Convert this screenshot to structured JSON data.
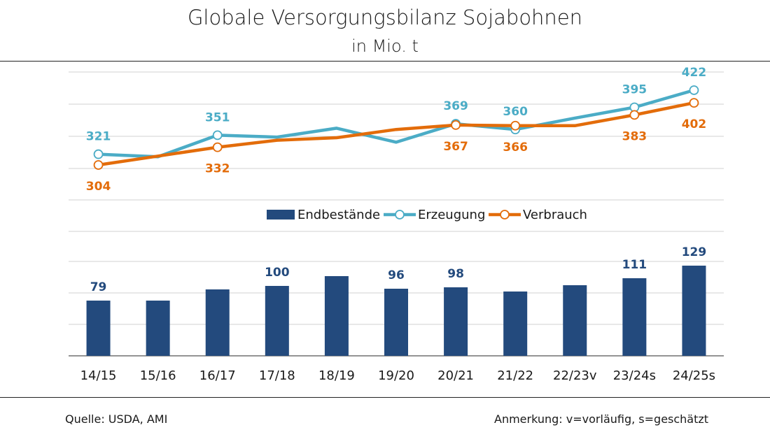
{
  "header": {
    "title": "Globale Versorgungsbilanz Sojabohnen",
    "subtitle": "in Mio. t"
  },
  "footer": {
    "source": "Quelle: USDA, AMI",
    "note": "Anmerkung: v=vorläufig, s=geschätzt"
  },
  "colors": {
    "endbestaende": "#234a7d",
    "erzeugung": "#4bacc6",
    "verbrauch": "#e36c0a",
    "grid": "#d0d0d0"
  },
  "chart_data": {
    "type": "bar+line",
    "categories": [
      "14/15",
      "15/16",
      "16/17",
      "17/18",
      "18/19",
      "19/20",
      "20/21",
      "21/22",
      "22/23v",
      "23/24s",
      "24/25s"
    ],
    "legend": [
      "Endbestände",
      "Erzeugung",
      "Verbrauch"
    ],
    "legend_position": "middle",
    "grid": true,
    "series": [
      {
        "name": "Erzeugung",
        "type": "line",
        "values": [
          321,
          317,
          351,
          348,
          362,
          340,
          369,
          360,
          378,
          395,
          422
        ],
        "markers": [
          true,
          false,
          true,
          false,
          false,
          false,
          true,
          true,
          false,
          true,
          true
        ],
        "labels": [
          "321",
          "",
          "351",
          "",
          "",
          "",
          "369",
          "360",
          "",
          "395",
          "422"
        ]
      },
      {
        "name": "Verbrauch",
        "type": "line",
        "values": [
          304,
          318,
          332,
          343,
          347,
          360,
          367,
          366,
          366,
          383,
          402
        ],
        "markers": [
          true,
          false,
          true,
          false,
          false,
          false,
          true,
          true,
          false,
          true,
          true
        ],
        "labels": [
          "304",
          "",
          "332",
          "",
          "",
          "",
          "367",
          "366",
          "",
          "383",
          "402"
        ]
      },
      {
        "name": "Endbestände",
        "type": "bar",
        "values": [
          79,
          79,
          95,
          100,
          114,
          96,
          98,
          92,
          101,
          111,
          129
        ],
        "labels": [
          "79",
          "",
          "",
          "100",
          "",
          "96",
          "98",
          "",
          "",
          "111",
          "129"
        ]
      }
    ],
    "line_ylim": [
      255,
      443
    ],
    "bar_ylim": [
      0,
      175
    ]
  }
}
